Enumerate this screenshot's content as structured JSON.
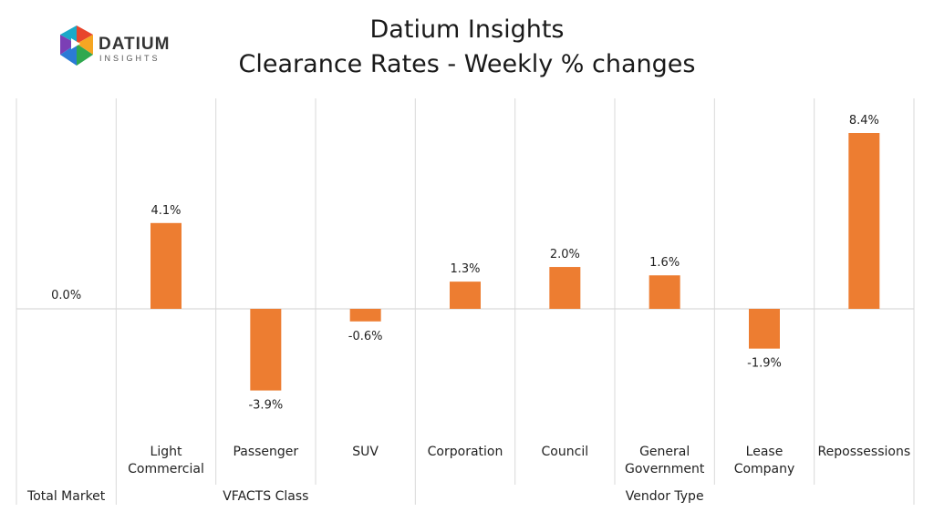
{
  "header": {
    "title": "Datium Insights",
    "subtitle": "Clearance Rates - Weekly % changes"
  },
  "logo": {
    "name": "DATIUM",
    "tagline": "INSIGHTS",
    "colors": [
      "#e8452c",
      "#f5a623",
      "#2fa84f",
      "#2b7bd6",
      "#7b3fb5",
      "#1ba9c9"
    ]
  },
  "chart_data": {
    "type": "bar",
    "categories": [
      "Total Market",
      "Light Commercial",
      "Passenger",
      "SUV",
      "Corporation",
      "Council",
      "General Government",
      "Lease Company",
      "Repossessions"
    ],
    "category_labels": [
      [
        ""
      ],
      [
        "Light",
        "Commercial"
      ],
      [
        "Passenger"
      ],
      [
        "SUV"
      ],
      [
        "Corporation"
      ],
      [
        "Council"
      ],
      [
        "General",
        "Government"
      ],
      [
        "Lease",
        "Company"
      ],
      [
        "Repossessions"
      ]
    ],
    "values": [
      0.0,
      4.1,
      -3.9,
      -0.6,
      1.3,
      2.0,
      1.6,
      -1.9,
      8.4
    ],
    "data_labels": [
      "0.0%",
      "4.1%",
      "-3.9%",
      "-0.6%",
      "1.3%",
      "2.0%",
      "1.6%",
      "-1.9%",
      "8.4%"
    ],
    "groups": [
      {
        "label": "Total Market",
        "start": 0,
        "end": 0
      },
      {
        "label": "VFACTS Class",
        "start": 1,
        "end": 3
      },
      {
        "label": "Vendor Type",
        "start": 4,
        "end": 8
      }
    ],
    "bar_color": "#ed7d31",
    "ylim": [
      -6,
      10
    ],
    "grid": "vertical-separators"
  }
}
